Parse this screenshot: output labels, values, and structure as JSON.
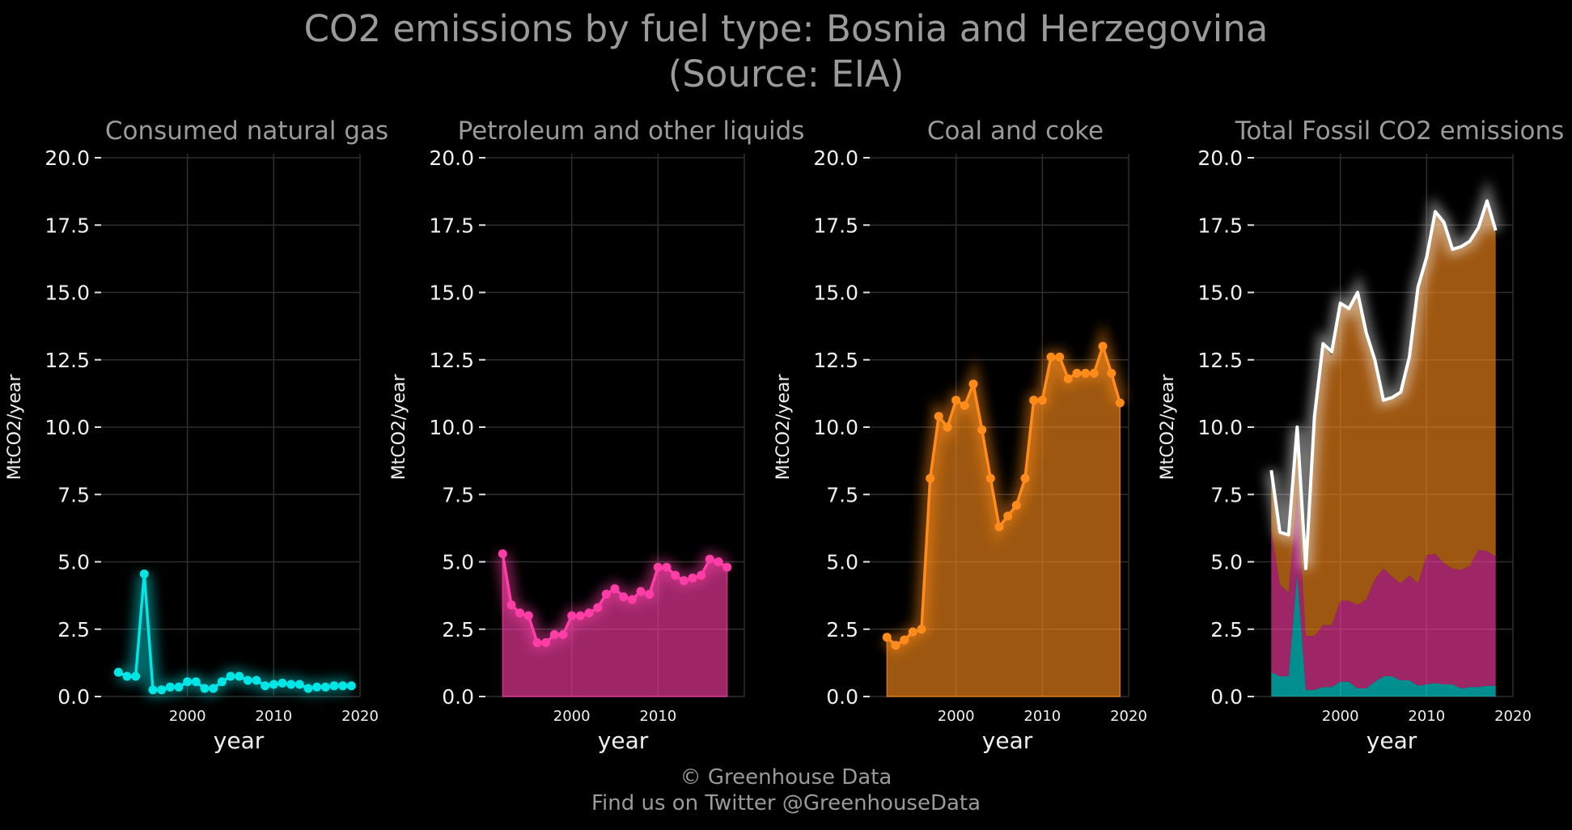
{
  "title": {
    "line1": "CO2 emissions by fuel type: Bosnia and Herzegovina",
    "line2": "(Source: EIA)"
  },
  "footer": {
    "line1": "© Greenhouse Data",
    "line2": "Find us on Twitter @GreenhouseData"
  },
  "colors": {
    "background": "#000000",
    "natural_gas": "#00e5e5",
    "petroleum": "#ff3da6",
    "coal": "#ff8c1a",
    "total_line": "#ffffff",
    "grid": "#3a3a3a",
    "title_text": "#9a9a9a"
  },
  "chart_data": [
    {
      "type": "line",
      "title": "Consumed natural gas",
      "xlabel": "year",
      "ylabel": "MtCO2/year",
      "xlim": [
        1990,
        2020
      ],
      "ylim": [
        0,
        20
      ],
      "yticks": [
        "0.0",
        "2.5",
        "5.0",
        "7.5",
        "10.0",
        "12.5",
        "15.0",
        "17.5",
        "20.0"
      ],
      "xticks": [
        "2000",
        "2010",
        "2020"
      ],
      "grid": true,
      "fill_area": false,
      "markers": true,
      "series": [
        {
          "color": "#00e5e5",
          "x": [
            1992,
            1993,
            1994,
            1995,
            1996,
            1997,
            1998,
            1999,
            2000,
            2001,
            2002,
            2003,
            2004,
            2005,
            2006,
            2007,
            2008,
            2009,
            2010,
            2011,
            2012,
            2013,
            2014,
            2015,
            2016,
            2017,
            2018,
            2019
          ],
          "y": [
            0.9,
            0.75,
            0.75,
            4.55,
            0.25,
            0.25,
            0.35,
            0.35,
            0.55,
            0.55,
            0.3,
            0.3,
            0.55,
            0.75,
            0.75,
            0.6,
            0.6,
            0.4,
            0.45,
            0.5,
            0.45,
            0.45,
            0.3,
            0.35,
            0.35,
            0.4,
            0.4,
            0.4
          ]
        }
      ]
    },
    {
      "type": "area",
      "title": "Petroleum and other liquids",
      "xlabel": "year",
      "ylabel": "MtCO2/year",
      "xlim": [
        1990,
        2020
      ],
      "ylim": [
        0,
        20
      ],
      "yticks": [
        "0.0",
        "2.5",
        "5.0",
        "7.5",
        "10.0",
        "12.5",
        "15.0",
        "17.5",
        "20.0"
      ],
      "xticks": [
        "2000",
        "2010"
      ],
      "grid": true,
      "fill_area": true,
      "markers": true,
      "series": [
        {
          "color": "#ff3da6",
          "x": [
            1992,
            1993,
            1994,
            1995,
            1996,
            1997,
            1998,
            1999,
            2000,
            2001,
            2002,
            2003,
            2004,
            2005,
            2006,
            2007,
            2008,
            2009,
            2010,
            2011,
            2012,
            2013,
            2014,
            2015,
            2016,
            2017,
            2018
          ],
          "y": [
            5.3,
            3.4,
            3.1,
            3.0,
            2.0,
            2.0,
            2.3,
            2.3,
            3.0,
            3.0,
            3.1,
            3.3,
            3.8,
            4.0,
            3.7,
            3.6,
            3.9,
            3.8,
            4.8,
            4.8,
            4.5,
            4.3,
            4.4,
            4.5,
            5.1,
            5.0,
            4.8
          ]
        }
      ]
    },
    {
      "type": "area",
      "title": "Coal and coke",
      "xlabel": "year",
      "ylabel": "MtCO2/year",
      "xlim": [
        1990,
        2020
      ],
      "ylim": [
        0,
        20
      ],
      "yticks": [
        "0.0",
        "2.5",
        "5.0",
        "7.5",
        "10.0",
        "12.5",
        "15.0",
        "17.5",
        "20.0"
      ],
      "xticks": [
        "2000",
        "2010",
        "2020"
      ],
      "grid": true,
      "fill_area": true,
      "markers": true,
      "series": [
        {
          "color": "#ff8c1a",
          "x": [
            1992,
            1993,
            1994,
            1995,
            1996,
            1997,
            1998,
            1999,
            2000,
            2001,
            2002,
            2003,
            2004,
            2005,
            2006,
            2007,
            2008,
            2009,
            2010,
            2011,
            2012,
            2013,
            2014,
            2015,
            2016,
            2017,
            2018,
            2019
          ],
          "y": [
            2.2,
            1.9,
            2.1,
            2.4,
            2.5,
            8.1,
            10.4,
            10.0,
            11.0,
            10.8,
            11.6,
            9.9,
            8.1,
            6.3,
            6.7,
            7.1,
            8.1,
            11.0,
            11.0,
            12.6,
            12.6,
            11.8,
            12.0,
            12.0,
            12.0,
            13.0,
            12.0,
            10.9
          ]
        }
      ]
    },
    {
      "type": "area",
      "title": "Total Fossil CO2 emissions",
      "xlabel": "year",
      "ylabel": "MtCO2/year",
      "xlim": [
        1990,
        2020
      ],
      "ylim": [
        0,
        20
      ],
      "yticks": [
        "0.0",
        "2.5",
        "5.0",
        "7.5",
        "10.0",
        "12.5",
        "15.0",
        "17.5",
        "20.0"
      ],
      "xticks": [
        "2000",
        "2010",
        "2020"
      ],
      "grid": true,
      "stacked": true,
      "x": [
        1992,
        1993,
        1994,
        1995,
        1996,
        1997,
        1998,
        1999,
        2000,
        2001,
        2002,
        2003,
        2004,
        2005,
        2006,
        2007,
        2008,
        2009,
        2010,
        2011,
        2012,
        2013,
        2014,
        2015,
        2016,
        2017,
        2018
      ],
      "stack": [
        {
          "color": "#00e5e5",
          "values": [
            0.9,
            0.75,
            0.75,
            4.55,
            0.25,
            0.25,
            0.35,
            0.35,
            0.55,
            0.55,
            0.3,
            0.3,
            0.55,
            0.75,
            0.75,
            0.6,
            0.6,
            0.4,
            0.45,
            0.5,
            0.45,
            0.45,
            0.3,
            0.35,
            0.35,
            0.4,
            0.4
          ]
        },
        {
          "color": "#ff3da6",
          "values": [
            5.3,
            3.4,
            3.1,
            3.0,
            2.0,
            2.0,
            2.3,
            2.3,
            3.0,
            3.0,
            3.1,
            3.3,
            3.8,
            4.0,
            3.7,
            3.6,
            3.9,
            3.8,
            4.8,
            4.8,
            4.5,
            4.3,
            4.4,
            4.5,
            5.1,
            5.0,
            4.8
          ]
        },
        {
          "color": "#ff8c1a",
          "values": [
            2.2,
            1.9,
            2.1,
            2.4,
            2.5,
            8.1,
            10.4,
            10.0,
            11.0,
            10.8,
            11.6,
            9.9,
            8.1,
            6.3,
            6.7,
            7.1,
            8.1,
            11.0,
            11.0,
            12.6,
            12.6,
            11.8,
            12.0,
            12.0,
            12.0,
            13.0,
            12.0
          ]
        }
      ],
      "total_line": {
        "color": "#ffffff",
        "x": [
          1992,
          1993,
          1994,
          1995,
          1996,
          1997,
          1998,
          1999,
          2000,
          2001,
          2002,
          2003,
          2004,
          2005,
          2006,
          2007,
          2008,
          2009,
          2010,
          2011,
          2012,
          2013,
          2014,
          2015,
          2016,
          2017,
          2018
        ],
        "y": [
          8.4,
          6.1,
          6.0,
          10.0,
          4.75,
          10.4,
          13.1,
          12.8,
          14.6,
          14.4,
          15.0,
          13.5,
          12.5,
          11.0,
          11.1,
          11.3,
          12.6,
          15.2,
          16.3,
          18.0,
          17.6,
          16.6,
          16.7,
          16.9,
          17.4,
          18.4,
          17.3
        ]
      }
    }
  ]
}
